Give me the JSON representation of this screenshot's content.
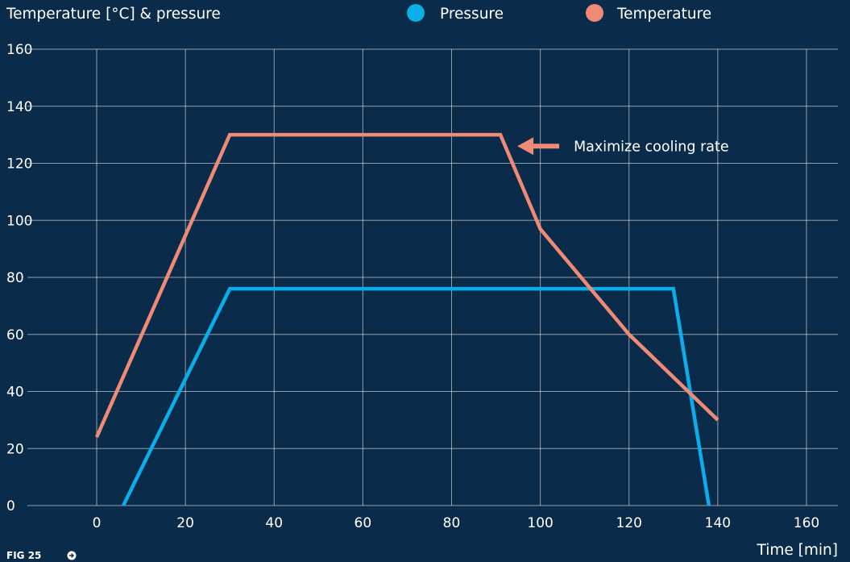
{
  "chart_data": {
    "type": "line",
    "ylabel": "Temperature [°C] & pressure",
    "xlabel": "Time [min]",
    "xlim": [
      -10,
      165
    ],
    "ylim": [
      0,
      160
    ],
    "x_ticks": [
      0,
      20,
      40,
      60,
      80,
      100,
      120,
      140,
      160
    ],
    "y_ticks": [
      0,
      20,
      40,
      60,
      80,
      100,
      120,
      140,
      160
    ],
    "grid": true,
    "legend_position": "top-center",
    "series": [
      {
        "name": "Pressure",
        "color": "#0aaee8",
        "points": [
          [
            6,
            0
          ],
          [
            30,
            76
          ],
          [
            130,
            76
          ],
          [
            138,
            0
          ]
        ]
      },
      {
        "name": "Temperature",
        "color": "#ee8a75",
        "points": [
          [
            0,
            24
          ],
          [
            30,
            130
          ],
          [
            91,
            130
          ],
          [
            100,
            97
          ],
          [
            120,
            60
          ],
          [
            140,
            30
          ]
        ]
      }
    ],
    "annotations": [
      {
        "text": "Maximize cooling rate",
        "x": 93,
        "y": 126
      }
    ]
  },
  "footer": {
    "fig_label": "FIG 25"
  },
  "icons": {
    "footer_icon": "arrow-right-circle-icon"
  }
}
